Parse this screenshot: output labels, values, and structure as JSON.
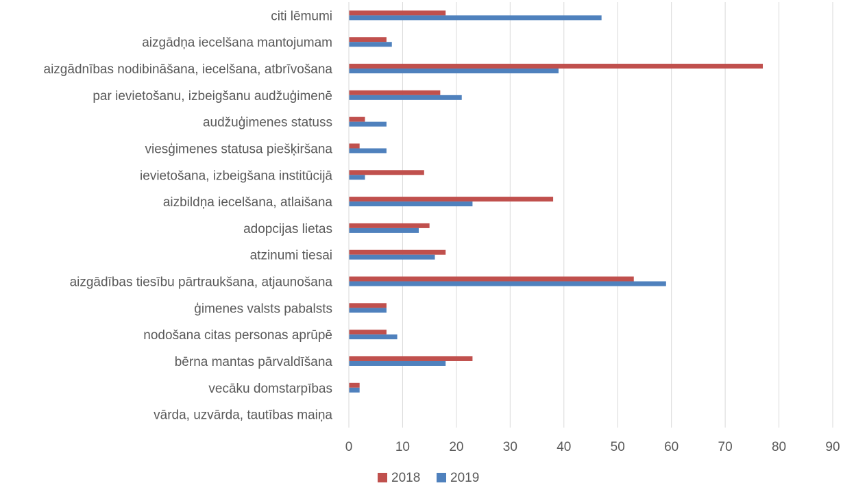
{
  "chart_data": {
    "type": "bar",
    "orientation": "horizontal",
    "categories": [
      "citi lēmumi",
      "aizgādņa iecelšana mantojumam",
      "aizgādnības nodibināšana, iecelšana, atbrīvošana",
      "par ievietošanu, izbeigšanu audžuģimenē",
      "audžuģimenes statuss",
      "viesģimenes statusa piešķiršana",
      "ievietošana, izbeigšana institūcijā",
      "aizbildņa iecelšana, atlaišana",
      "adopcijas lietas",
      "atzinumi tiesai",
      "aizgādības tiesību pārtraukšana, atjaunošana",
      "ģimenes valsts pabalsts",
      "nodošana citas personas aprūpē",
      "bērna mantas pārvaldīšana",
      "vecāku domstarpības",
      "vārda, uzvārda, tautības maiņa"
    ],
    "series": [
      {
        "name": "2018",
        "color": "#C0504D",
        "values": [
          18,
          7,
          77,
          17,
          3,
          2,
          14,
          38,
          15,
          18,
          53,
          7,
          7,
          23,
          2,
          0
        ]
      },
      {
        "name": "2019",
        "color": "#4F81BD",
        "values": [
          47,
          8,
          39,
          21,
          7,
          7,
          3,
          23,
          13,
          16,
          59,
          7,
          9,
          18,
          2,
          0
        ]
      }
    ],
    "x_ticks": [
      "0",
      "10",
      "20",
      "30",
      "40",
      "50",
      "60",
      "70",
      "80",
      "90"
    ],
    "xlim": [
      0,
      90
    ],
    "grid": "vertical",
    "legend_position": "bottom"
  }
}
